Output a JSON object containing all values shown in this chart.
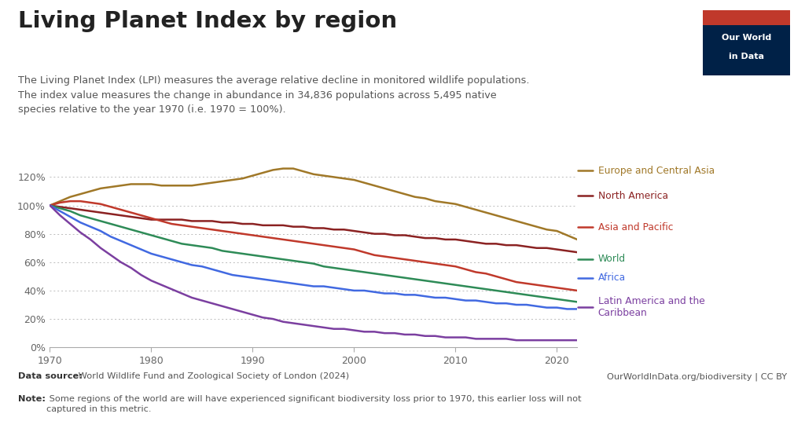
{
  "title": "Living Planet Index by region",
  "subtitle_lines": [
    "The Living Planet Index (LPI) measures the average relative decline in monitored wildlife populations.",
    "The index value measures the change in abundance in 34,836 populations across 5,495 native",
    "species relative to the year 1970 (i.e. 1970 = 100%)."
  ],
  "datasource_bold": "Data source:",
  "datasource_normal": " World Wildlife Fund and Zoological Society of London (2024)",
  "url": "OurWorldInData.org/biodiversity | CC BY",
  "note_bold": "Note:",
  "note_normal": " Some regions of the world are will have experienced significant biodiversity loss prior to 1970, this earlier loss will not\ncaptured in this metric.",
  "logo_bg": "#002147",
  "logo_red": "#C0392B",
  "background_color": "#ffffff",
  "series": [
    {
      "name": "Europe and Central Asia",
      "color": "#A07828",
      "years": [
        1970,
        1971,
        1972,
        1973,
        1974,
        1975,
        1976,
        1977,
        1978,
        1979,
        1980,
        1981,
        1982,
        1983,
        1984,
        1985,
        1986,
        1987,
        1988,
        1989,
        1990,
        1991,
        1992,
        1993,
        1994,
        1995,
        1996,
        1997,
        1998,
        1999,
        2000,
        2001,
        2002,
        2003,
        2004,
        2005,
        2006,
        2007,
        2008,
        2009,
        2010,
        2011,
        2012,
        2013,
        2014,
        2015,
        2016,
        2017,
        2018,
        2019,
        2020,
        2021,
        2022
      ],
      "values": [
        100,
        103,
        106,
        108,
        110,
        112,
        113,
        114,
        115,
        115,
        115,
        114,
        114,
        114,
        114,
        115,
        116,
        117,
        118,
        119,
        121,
        123,
        125,
        126,
        126,
        124,
        122,
        121,
        120,
        119,
        118,
        116,
        114,
        112,
        110,
        108,
        106,
        105,
        103,
        102,
        101,
        99,
        97,
        95,
        93,
        91,
        89,
        87,
        85,
        83,
        82,
        79,
        76
      ]
    },
    {
      "name": "North America",
      "color": "#8B2222",
      "years": [
        1970,
        1971,
        1972,
        1973,
        1974,
        1975,
        1976,
        1977,
        1978,
        1979,
        1980,
        1981,
        1982,
        1983,
        1984,
        1985,
        1986,
        1987,
        1988,
        1989,
        1990,
        1991,
        1992,
        1993,
        1994,
        1995,
        1996,
        1997,
        1998,
        1999,
        2000,
        2001,
        2002,
        2003,
        2004,
        2005,
        2006,
        2007,
        2008,
        2009,
        2010,
        2011,
        2012,
        2013,
        2014,
        2015,
        2016,
        2017,
        2018,
        2019,
        2020,
        2021,
        2022
      ],
      "values": [
        100,
        99,
        98,
        97,
        96,
        95,
        94,
        93,
        92,
        91,
        90,
        90,
        90,
        90,
        89,
        89,
        89,
        88,
        88,
        87,
        87,
        86,
        86,
        86,
        85,
        85,
        84,
        84,
        83,
        83,
        82,
        81,
        80,
        80,
        79,
        79,
        78,
        77,
        77,
        76,
        76,
        75,
        74,
        73,
        73,
        72,
        72,
        71,
        70,
        70,
        69,
        68,
        67
      ]
    },
    {
      "name": "Asia and Pacific",
      "color": "#C0392B",
      "years": [
        1970,
        1971,
        1972,
        1973,
        1974,
        1975,
        1976,
        1977,
        1978,
        1979,
        1980,
        1981,
        1982,
        1983,
        1984,
        1985,
        1986,
        1987,
        1988,
        1989,
        1990,
        1991,
        1992,
        1993,
        1994,
        1995,
        1996,
        1997,
        1998,
        1999,
        2000,
        2001,
        2002,
        2003,
        2004,
        2005,
        2006,
        2007,
        2008,
        2009,
        2010,
        2011,
        2012,
        2013,
        2014,
        2015,
        2016,
        2017,
        2018,
        2019,
        2020,
        2021,
        2022
      ],
      "values": [
        100,
        102,
        103,
        103,
        102,
        101,
        99,
        97,
        95,
        93,
        91,
        89,
        87,
        86,
        85,
        84,
        83,
        82,
        81,
        80,
        79,
        78,
        77,
        76,
        75,
        74,
        73,
        72,
        71,
        70,
        69,
        67,
        65,
        64,
        63,
        62,
        61,
        60,
        59,
        58,
        57,
        55,
        53,
        52,
        50,
        48,
        46,
        45,
        44,
        43,
        42,
        41,
        40
      ]
    },
    {
      "name": "World",
      "color": "#2E8B57",
      "years": [
        1970,
        1971,
        1972,
        1973,
        1974,
        1975,
        1976,
        1977,
        1978,
        1979,
        1980,
        1981,
        1982,
        1983,
        1984,
        1985,
        1986,
        1987,
        1988,
        1989,
        1990,
        1991,
        1992,
        1993,
        1994,
        1995,
        1996,
        1997,
        1998,
        1999,
        2000,
        2001,
        2002,
        2003,
        2004,
        2005,
        2006,
        2007,
        2008,
        2009,
        2010,
        2011,
        2012,
        2013,
        2014,
        2015,
        2016,
        2017,
        2018,
        2019,
        2020,
        2021,
        2022
      ],
      "values": [
        100,
        98,
        96,
        93,
        91,
        89,
        87,
        85,
        83,
        81,
        79,
        77,
        75,
        73,
        72,
        71,
        70,
        68,
        67,
        66,
        65,
        64,
        63,
        62,
        61,
        60,
        59,
        57,
        56,
        55,
        54,
        53,
        52,
        51,
        50,
        49,
        48,
        47,
        46,
        45,
        44,
        43,
        42,
        41,
        40,
        39,
        38,
        37,
        36,
        35,
        34,
        33,
        32
      ]
    },
    {
      "name": "Africa",
      "color": "#4169E1",
      "years": [
        1970,
        1971,
        1972,
        1973,
        1974,
        1975,
        1976,
        1977,
        1978,
        1979,
        1980,
        1981,
        1982,
        1983,
        1984,
        1985,
        1986,
        1987,
        1988,
        1989,
        1990,
        1991,
        1992,
        1993,
        1994,
        1995,
        1996,
        1997,
        1998,
        1999,
        2000,
        2001,
        2002,
        2003,
        2004,
        2005,
        2006,
        2007,
        2008,
        2009,
        2010,
        2011,
        2012,
        2013,
        2014,
        2015,
        2016,
        2017,
        2018,
        2019,
        2020,
        2021,
        2022
      ],
      "values": [
        100,
        96,
        92,
        88,
        85,
        82,
        78,
        75,
        72,
        69,
        66,
        64,
        62,
        60,
        58,
        57,
        55,
        53,
        51,
        50,
        49,
        48,
        47,
        46,
        45,
        44,
        43,
        43,
        42,
        41,
        40,
        40,
        39,
        38,
        38,
        37,
        37,
        36,
        35,
        35,
        34,
        33,
        33,
        32,
        31,
        31,
        30,
        30,
        29,
        28,
        28,
        27,
        27
      ]
    },
    {
      "name": "Latin America and the\nCaribbean",
      "color": "#7B3FA0",
      "years": [
        1970,
        1971,
        1972,
        1973,
        1974,
        1975,
        1976,
        1977,
        1978,
        1979,
        1980,
        1981,
        1982,
        1983,
        1984,
        1985,
        1986,
        1987,
        1988,
        1989,
        1990,
        1991,
        1992,
        1993,
        1994,
        1995,
        1996,
        1997,
        1998,
        1999,
        2000,
        2001,
        2002,
        2003,
        2004,
        2005,
        2006,
        2007,
        2008,
        2009,
        2010,
        2011,
        2012,
        2013,
        2014,
        2015,
        2016,
        2017,
        2018,
        2019,
        2020,
        2021,
        2022
      ],
      "values": [
        100,
        93,
        87,
        81,
        76,
        70,
        65,
        60,
        56,
        51,
        47,
        44,
        41,
        38,
        35,
        33,
        31,
        29,
        27,
        25,
        23,
        21,
        20,
        18,
        17,
        16,
        15,
        14,
        13,
        13,
        12,
        11,
        11,
        10,
        10,
        9,
        9,
        8,
        8,
        7,
        7,
        7,
        6,
        6,
        6,
        6,
        5,
        5,
        5,
        5,
        5,
        5,
        5
      ]
    }
  ],
  "xlim": [
    1970,
    2022
  ],
  "ylim": [
    0,
    135
  ],
  "yticks": [
    0,
    20,
    40,
    60,
    80,
    100,
    120
  ],
  "ytick_labels": [
    "0%",
    "20%",
    "40%",
    "60%",
    "80%",
    "100%",
    "120%"
  ],
  "xticks": [
    1970,
    1980,
    1990,
    2000,
    2010,
    2020
  ]
}
